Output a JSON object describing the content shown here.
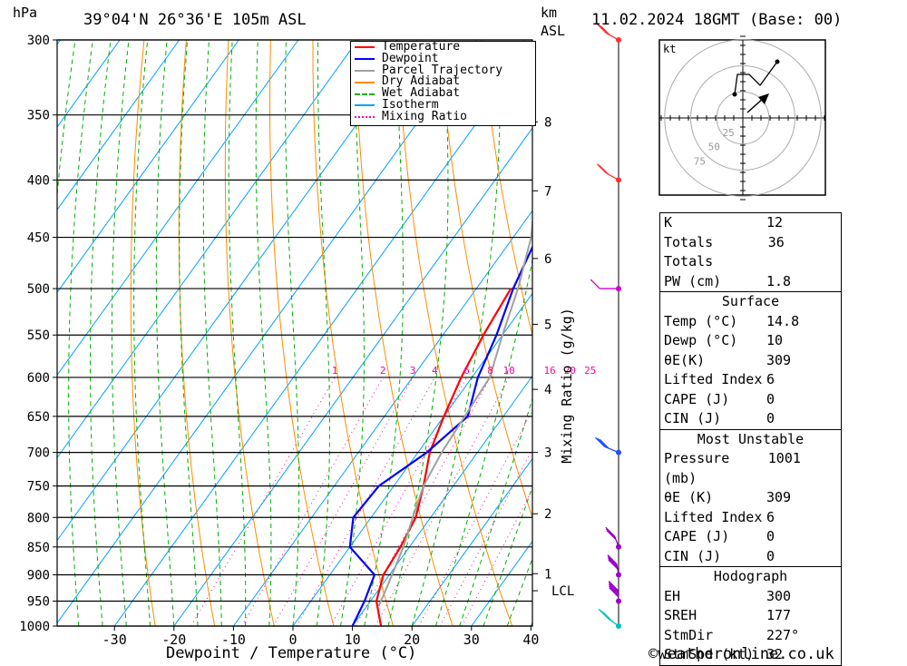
{
  "header": {
    "location": "39°04'N 26°36'E 105m ASL",
    "datetime": "11.02.2024 18GMT (Base: 00)",
    "hpa_label": "hPa",
    "km_label": "km",
    "asl_label": "ASL"
  },
  "chart_data": {
    "type": "line",
    "title": "39°04'N 26°36'E 105m ASL",
    "xlabel": "Dewpoint / Temperature (°C)",
    "ylabel": "hPa",
    "y2label": "Mixing Ratio (g/kg)",
    "xlim": [
      -40,
      40
    ],
    "ylim": [
      1000,
      300
    ],
    "y_scale": "log",
    "x_ticks": [
      -30,
      -20,
      -10,
      0,
      10,
      20,
      30,
      40
    ],
    "pressure_levels": [
      300,
      350,
      400,
      450,
      500,
      550,
      600,
      650,
      700,
      750,
      800,
      850,
      900,
      950,
      1000
    ],
    "km_ticks": [
      {
        "label": "1",
        "p": 898
      },
      {
        "label": "2",
        "p": 794
      },
      {
        "label": "3",
        "p": 700
      },
      {
        "label": "4",
        "p": 615
      },
      {
        "label": "5",
        "p": 538
      },
      {
        "label": "6",
        "p": 470
      },
      {
        "label": "7",
        "p": 409
      },
      {
        "label": "8",
        "p": 355
      }
    ],
    "lcl": {
      "label": "LCL",
      "p": 930
    },
    "mixing_ratio_labels": [
      "1",
      "2",
      "3",
      "4",
      "6",
      "8",
      "10",
      "16",
      "20",
      "25"
    ],
    "legend": [
      {
        "name": "Temperature",
        "color": "#ff0000"
      },
      {
        "name": "Dewpoint",
        "color": "#0000ff"
      },
      {
        "name": "Parcel Trajectory",
        "color": "#a0a0a0"
      },
      {
        "name": "Dry Adiabat",
        "color": "#ff8c00"
      },
      {
        "name": "Wet Adiabat",
        "color": "#00b000"
      },
      {
        "name": "Isotherm",
        "color": "#00a0ff"
      },
      {
        "name": "Mixing Ratio",
        "color": "#ff00a0"
      }
    ],
    "legend_position": "top-right",
    "series": [
      {
        "name": "Temperature",
        "color": "#ff0000",
        "points": [
          [
            14.8,
            1000
          ],
          [
            11,
            950
          ],
          [
            9,
            900
          ],
          [
            8.5,
            850
          ],
          [
            7.5,
            800
          ],
          [
            5,
            750
          ],
          [
            2,
            700
          ],
          [
            0,
            650
          ],
          [
            -1.8,
            600
          ],
          [
            -3.2,
            550
          ],
          [
            -4.2,
            500
          ]
        ]
      },
      {
        "name": "Dewpoint",
        "color": "#0000ff",
        "points": [
          [
            10,
            1000
          ],
          [
            9,
            950
          ],
          [
            7.5,
            900
          ],
          [
            0,
            850
          ],
          [
            -3,
            800
          ],
          [
            -2.5,
            750
          ],
          [
            1.5,
            700
          ],
          [
            4,
            650
          ],
          [
            1,
            600
          ],
          [
            -1,
            550
          ],
          [
            -3.8,
            500
          ],
          [
            -6,
            450
          ],
          [
            -9,
            400
          ],
          [
            -13,
            350
          ],
          [
            -20,
            300
          ]
        ]
      },
      {
        "name": "Parcel Trajectory",
        "color": "#a0a0a0",
        "points": [
          [
            12,
            960
          ],
          [
            11,
            920
          ],
          [
            9,
            850
          ],
          [
            7,
            800
          ],
          [
            5,
            750
          ],
          [
            4,
            700
          ],
          [
            3.5,
            650
          ],
          [
            3,
            600
          ],
          [
            0,
            550
          ],
          [
            -3,
            500
          ],
          [
            -7,
            450
          ],
          [
            -13,
            400
          ],
          [
            -19,
            350
          ],
          [
            -26,
            300
          ]
        ]
      }
    ]
  },
  "indices": {
    "k_label": "K",
    "k_value": "12",
    "tt_label": "Totals Totals",
    "tt_value": "36",
    "pw_label": "PW (cm)",
    "pw_value": "1.8"
  },
  "surface": {
    "title": "Surface",
    "temp_label": "Temp (°C)",
    "temp_value": "14.8",
    "dewp_label": "Dewp (°C)",
    "dewp_value": "10",
    "theta_label": "θE(K)",
    "theta_value": "309",
    "li_label": "Lifted Index",
    "li_value": "6",
    "cape_label": "CAPE (J)",
    "cape_value": "0",
    "cin_label": "CIN (J)",
    "cin_value": "0"
  },
  "most_unstable": {
    "title": "Most Unstable",
    "pressure_label": "Pressure (mb)",
    "pressure_value": "1001",
    "theta_label": "θE (K)",
    "theta_value": "309",
    "li_label": "Lifted Index",
    "li_value": "6",
    "cape_label": "CAPE (J)",
    "cape_value": "0",
    "cin_label": "CIN (J)",
    "cin_value": "0"
  },
  "hodograph_table": {
    "title": "Hodograph",
    "eh_label": "EH",
    "eh_value": "300",
    "sreh_label": "SREH",
    "sreh_value": "177",
    "stmdir_label": "StmDir",
    "stmdir_value": "227°",
    "stmspd_label": "StmSpd (kt)",
    "stmspd_value": "32"
  },
  "hodograph": {
    "unit_label": "kt",
    "ring_labels": [
      "25",
      "50",
      "75"
    ]
  },
  "footer": {
    "copyright": "©weatheronline.co.uk"
  }
}
